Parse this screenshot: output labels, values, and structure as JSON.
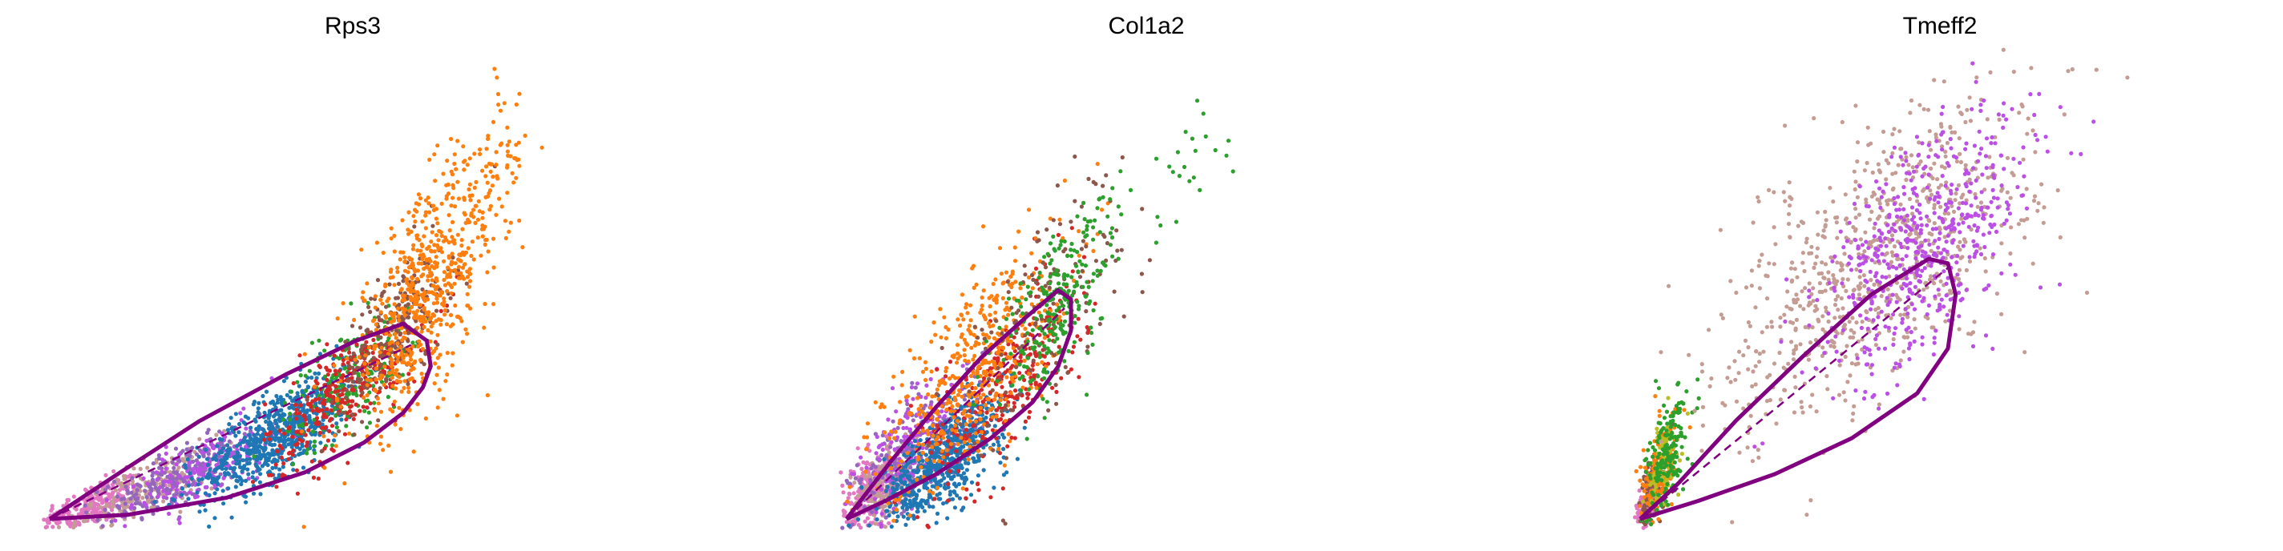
{
  "chart_data": [
    {
      "type": "scatter",
      "title": "Rps3",
      "xlabel": "",
      "ylabel": "",
      "xlim": [
        0,
        1
      ],
      "ylim": [
        0,
        1
      ],
      "grid": false,
      "axes_visible": false,
      "legend": "none",
      "phase_curve": {
        "color": "#800080",
        "x": [
          0.0,
          0.2,
          0.45,
          0.65,
          0.8,
          0.9,
          0.95,
          0.97,
          0.96,
          0.9,
          0.78,
          0.6,
          0.38,
          0.18,
          0.0
        ],
        "y": [
          0.0,
          0.01,
          0.05,
          0.11,
          0.18,
          0.25,
          0.31,
          0.36,
          0.42,
          0.46,
          0.42,
          0.34,
          0.23,
          0.11,
          0.0
        ],
        "steady_state_line": {
          "x": [
            0.0,
            0.92
          ],
          "y": [
            0.0,
            0.41
          ]
        }
      },
      "series": [
        {
          "color": "#e377c2",
          "center": [
            0.1,
            0.03
          ],
          "spread": [
            0.07,
            0.025
          ],
          "count": 260,
          "slope": 0.35
        },
        {
          "color": "#c49c94",
          "center": [
            0.25,
            0.07
          ],
          "spread": [
            0.09,
            0.03
          ],
          "count": 220,
          "slope": 0.4
        },
        {
          "color": "#9467bd",
          "center": [
            0.33,
            0.1
          ],
          "spread": [
            0.1,
            0.035
          ],
          "count": 260,
          "slope": 0.45
        },
        {
          "color": "#bc4fe6",
          "center": [
            0.4,
            0.12
          ],
          "spread": [
            0.1,
            0.04
          ],
          "count": 180,
          "slope": 0.45
        },
        {
          "color": "#1f77b4",
          "center": [
            0.58,
            0.2
          ],
          "spread": [
            0.1,
            0.05
          ],
          "count": 700,
          "slope": 0.55
        },
        {
          "color": "#2ca02c",
          "center": [
            0.76,
            0.33
          ],
          "spread": [
            0.08,
            0.06
          ],
          "count": 200,
          "slope": 0.7
        },
        {
          "color": "#d62728",
          "center": [
            0.75,
            0.3
          ],
          "spread": [
            0.1,
            0.06
          ],
          "count": 300,
          "slope": 0.7
        },
        {
          "color": "#8c564b",
          "center": [
            0.88,
            0.45
          ],
          "spread": [
            0.07,
            0.07
          ],
          "count": 240,
          "slope": 0.9
        },
        {
          "color": "#ff7f0e",
          "center": [
            0.95,
            0.52
          ],
          "spread": [
            0.1,
            0.12
          ],
          "count": 620,
          "slope": 1.1
        },
        {
          "color": "#ff7f0e",
          "center": [
            1.12,
            0.78
          ],
          "spread": [
            0.05,
            0.08
          ],
          "count": 60,
          "slope": 1.2
        }
      ]
    },
    {
      "type": "scatter",
      "title": "Col1a2",
      "xlabel": "",
      "ylabel": "",
      "xlim": [
        0,
        1
      ],
      "ylim": [
        0,
        1
      ],
      "grid": false,
      "axes_visible": false,
      "legend": "none",
      "phase_curve": {
        "color": "#800080",
        "x": [
          0.0,
          0.12,
          0.28,
          0.45,
          0.58,
          0.66,
          0.7,
          0.7,
          0.66,
          0.56,
          0.42,
          0.28,
          0.14,
          0.0
        ],
        "y": [
          0.0,
          0.04,
          0.1,
          0.18,
          0.26,
          0.34,
          0.42,
          0.49,
          0.51,
          0.45,
          0.36,
          0.25,
          0.13,
          0.0
        ],
        "steady_state_line": {
          "x": [
            0.0,
            0.68
          ],
          "y": [
            0.0,
            0.47
          ]
        }
      },
      "series": [
        {
          "color": "#e377c2",
          "center": [
            0.08,
            0.06
          ],
          "spread": [
            0.05,
            0.04
          ],
          "count": 300,
          "slope": 0.5
        },
        {
          "color": "#c49c94",
          "center": [
            0.12,
            0.08
          ],
          "spread": [
            0.06,
            0.04
          ],
          "count": 150,
          "slope": 0.5
        },
        {
          "color": "#9467bd",
          "center": [
            0.22,
            0.15
          ],
          "spread": [
            0.1,
            0.06
          ],
          "count": 250,
          "slope": 0.6
        },
        {
          "color": "#bc4fe6",
          "center": [
            0.2,
            0.16
          ],
          "spread": [
            0.09,
            0.06
          ],
          "count": 150,
          "slope": 0.6
        },
        {
          "color": "#1f77b4",
          "center": [
            0.3,
            0.13
          ],
          "spread": [
            0.1,
            0.05
          ],
          "count": 650,
          "slope": 0.55
        },
        {
          "color": "#d62728",
          "center": [
            0.5,
            0.3
          ],
          "spread": [
            0.12,
            0.08
          ],
          "count": 300,
          "slope": 0.7
        },
        {
          "color": "#ff7f0e",
          "center": [
            0.4,
            0.34
          ],
          "spread": [
            0.14,
            0.1
          ],
          "count": 500,
          "slope": 0.7
        },
        {
          "color": "#8c564b",
          "center": [
            0.6,
            0.45
          ],
          "spread": [
            0.15,
            0.12
          ],
          "count": 150,
          "slope": 0.8
        },
        {
          "color": "#2ca02c",
          "center": [
            0.66,
            0.48
          ],
          "spread": [
            0.09,
            0.08
          ],
          "count": 260,
          "slope": 0.8
        },
        {
          "color": "#2ca02c",
          "center": [
            1.05,
            0.78
          ],
          "spread": [
            0.1,
            0.07
          ],
          "count": 25,
          "slope": 0.5
        }
      ]
    },
    {
      "type": "scatter",
      "title": "Tmeff2",
      "xlabel": "",
      "ylabel": "",
      "xlim": [
        0,
        1
      ],
      "ylim": [
        0,
        1
      ],
      "grid": false,
      "axes_visible": false,
      "legend": "none",
      "phase_curve": {
        "color": "#800080",
        "x": [
          0.0,
          0.15,
          0.35,
          0.55,
          0.72,
          0.8,
          0.82,
          0.8,
          0.75,
          0.6,
          0.42,
          0.25,
          0.1,
          0.0
        ],
        "y": [
          0.0,
          0.04,
          0.1,
          0.18,
          0.28,
          0.38,
          0.5,
          0.57,
          0.58,
          0.5,
          0.36,
          0.22,
          0.08,
          0.0
        ],
        "steady_state_line": {
          "x": [
            0.0,
            0.8
          ],
          "y": [
            0.0,
            0.56
          ]
        }
      },
      "series": [
        {
          "color": "#e377c2",
          "center": [
            0.02,
            0.03
          ],
          "spread": [
            0.015,
            0.02
          ],
          "count": 120,
          "slope": 0.8
        },
        {
          "color": "#8c564b",
          "center": [
            0.04,
            0.07
          ],
          "spread": [
            0.02,
            0.04
          ],
          "count": 150,
          "slope": 1.2
        },
        {
          "color": "#ff7f0e",
          "center": [
            0.05,
            0.1
          ],
          "spread": [
            0.025,
            0.05
          ],
          "count": 160,
          "slope": 1.4
        },
        {
          "color": "#bcbd22",
          "center": [
            0.06,
            0.12
          ],
          "spread": [
            0.02,
            0.05
          ],
          "count": 80,
          "slope": 1.4
        },
        {
          "color": "#2ca02c",
          "center": [
            0.07,
            0.15
          ],
          "spread": [
            0.025,
            0.06
          ],
          "count": 180,
          "slope": 1.5
        },
        {
          "color": "#c49c94",
          "center": [
            0.62,
            0.58
          ],
          "spread": [
            0.2,
            0.14
          ],
          "count": 800,
          "slope": 0.6
        },
        {
          "color": "#bc4fe6",
          "center": [
            0.75,
            0.62
          ],
          "spread": [
            0.14,
            0.12
          ],
          "count": 550,
          "slope": 0.6
        }
      ]
    }
  ]
}
